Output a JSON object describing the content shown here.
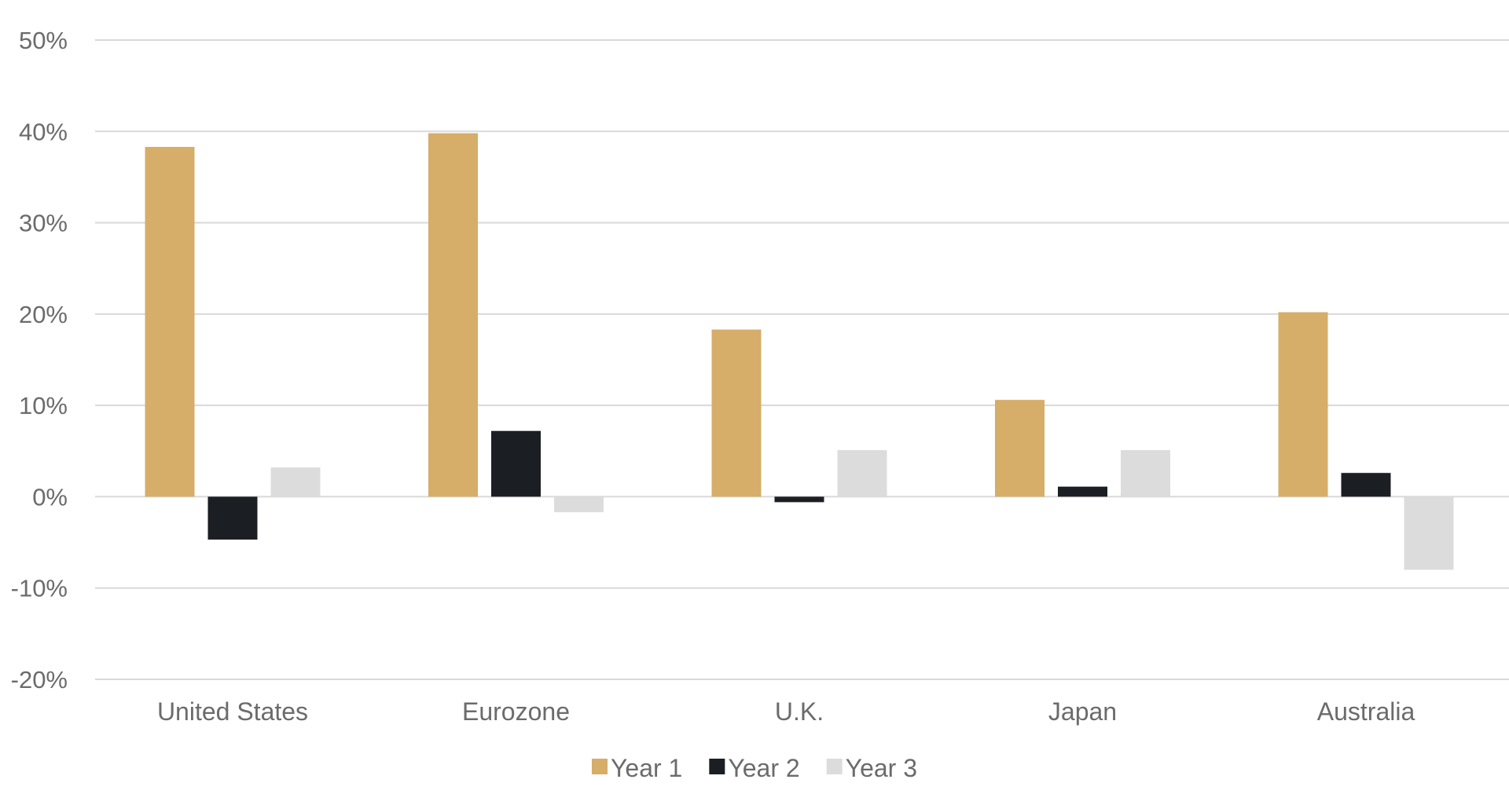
{
  "chart_data": {
    "type": "bar",
    "title": "",
    "xlabel": "",
    "ylabel": "",
    "categories": [
      "United States",
      "Eurozone",
      "U.K.",
      "Japan",
      "Australia"
    ],
    "series": [
      {
        "name": "Year 1",
        "color": "#d6ad69",
        "values": [
          38.3,
          39.8,
          18.3,
          10.6,
          20.2
        ]
      },
      {
        "name": "Year 2",
        "color": "#1b1e22",
        "values": [
          -4.7,
          7.2,
          -0.6,
          1.1,
          2.6
        ]
      },
      {
        "name": "Year 3",
        "color": "#dcdcdc",
        "values": [
          3.2,
          -1.7,
          5.1,
          5.1,
          -8.0
        ]
      }
    ],
    "ylim": [
      -20,
      50
    ],
    "y_ticks": [
      50,
      40,
      30,
      20,
      10,
      0,
      -10,
      -20
    ],
    "y_tick_labels": [
      "50%",
      "40%",
      "30%",
      "20%",
      "10%",
      "0%",
      "-10%",
      "-20%"
    ],
    "grid": true,
    "legend_position": "bottom-center"
  }
}
